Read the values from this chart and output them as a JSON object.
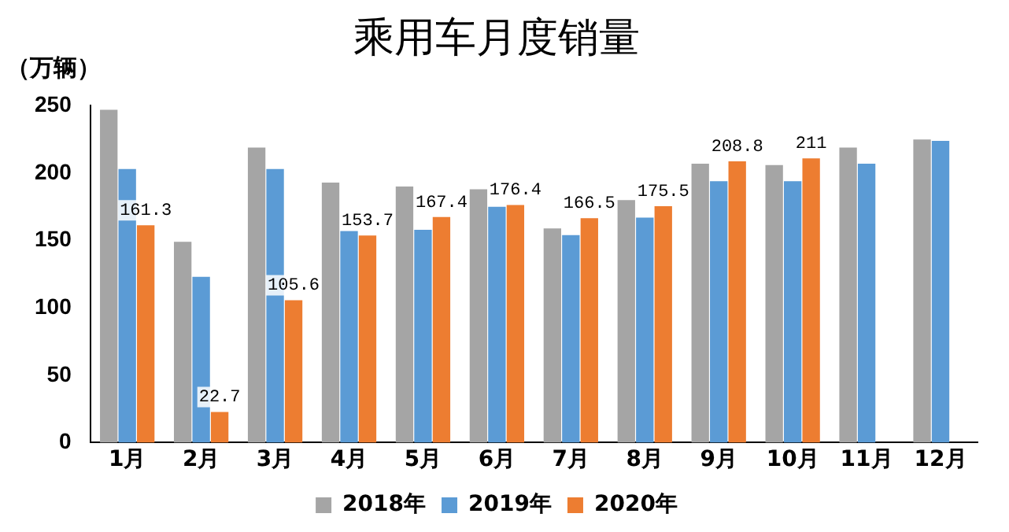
{
  "chart_data": {
    "type": "bar",
    "title": "乘用车月度销量",
    "ylabel": "（万辆）",
    "categories": [
      "1月",
      "2月",
      "3月",
      "4月",
      "5月",
      "6月",
      "7月",
      "8月",
      "9月",
      "10月",
      "11月",
      "12月"
    ],
    "series": [
      {
        "name": "2018年",
        "color": "#a5a5a5",
        "values": [
          247,
          149,
          219,
          193,
          190,
          188,
          159,
          180,
          207,
          206,
          219,
          225
        ]
      },
      {
        "name": "2019年",
        "color": "#5b9bd5",
        "values": [
          203,
          123,
          203,
          157,
          158,
          175,
          154,
          167,
          194,
          194,
          207,
          224
        ]
      },
      {
        "name": "2020年",
        "color": "#ed7d31",
        "values": [
          161.3,
          22.7,
          105.6,
          153.7,
          167.4,
          176.4,
          166.5,
          175.5,
          208.8,
          211,
          null,
          null
        ],
        "value_labels": [
          "161.3",
          "22.7",
          "105.6",
          "153.7",
          "167.4",
          "176.4",
          "166.5",
          "175.5",
          "208.8",
          "211",
          null,
          null
        ]
      }
    ],
    "ylim": [
      0,
      250
    ],
    "yticks": [
      0,
      50,
      100,
      150,
      200,
      250
    ],
    "grid": false,
    "legend": "bottom"
  }
}
